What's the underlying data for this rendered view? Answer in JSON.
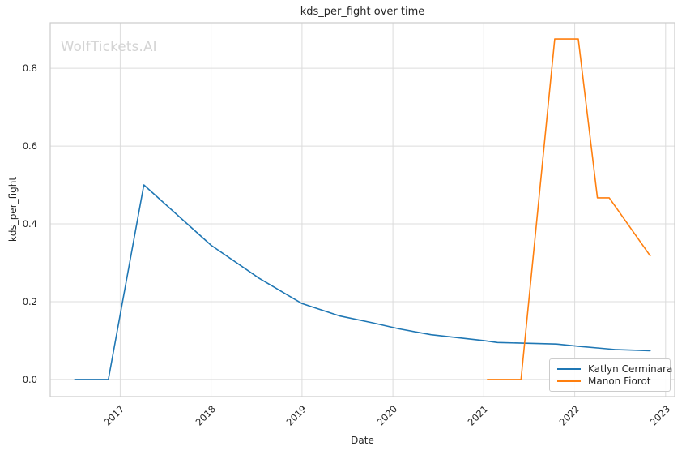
{
  "watermark": {
    "text": "WolfTickets.AI",
    "color": "#d4d4d4"
  },
  "chart_data": {
    "type": "line",
    "title": "kds_per_fight over time",
    "xlabel": "Date",
    "ylabel": "kds_per_fight",
    "x_ticks": [
      "2017",
      "2018",
      "2019",
      "2020",
      "2021",
      "2022",
      "2023"
    ],
    "x_tick_values": [
      2017,
      2018,
      2019,
      2020,
      2021,
      2022,
      2023
    ],
    "y_ticks": [
      "0.0",
      "0.2",
      "0.4",
      "0.6",
      "0.8"
    ],
    "y_tick_values": [
      0.0,
      0.2,
      0.4,
      0.6,
      0.8
    ],
    "xlim": [
      2016.23,
      2023.1
    ],
    "ylim": [
      -0.044,
      0.917
    ],
    "grid": true,
    "legend_position": "lower right",
    "colors": {
      "grid": "#dcdcdc",
      "axis_border": "#cccccc",
      "text": "#262626"
    },
    "series": [
      {
        "name": "Katlyn Cerminara",
        "color": "#1f77b4",
        "points": [
          [
            2016.5,
            0.0
          ],
          [
            2016.87,
            0.0
          ],
          [
            2017.26,
            0.5
          ],
          [
            2018.0,
            0.345
          ],
          [
            2018.53,
            0.26
          ],
          [
            2019.0,
            0.195
          ],
          [
            2019.42,
            0.163
          ],
          [
            2019.77,
            0.146
          ],
          [
            2020.07,
            0.13
          ],
          [
            2020.42,
            0.115
          ],
          [
            2021.0,
            0.1
          ],
          [
            2021.15,
            0.095
          ],
          [
            2021.8,
            0.091
          ],
          [
            2022.05,
            0.085
          ],
          [
            2022.3,
            0.08
          ],
          [
            2022.45,
            0.077
          ],
          [
            2022.83,
            0.074
          ]
        ]
      },
      {
        "name": "Manon Fiorot",
        "color": "#ff7f0e",
        "points": [
          [
            2021.04,
            0.0
          ],
          [
            2021.41,
            0.0
          ],
          [
            2021.78,
            0.875
          ],
          [
            2022.04,
            0.875
          ],
          [
            2022.25,
            0.467
          ],
          [
            2022.38,
            0.467
          ],
          [
            2022.83,
            0.318
          ]
        ]
      }
    ]
  }
}
